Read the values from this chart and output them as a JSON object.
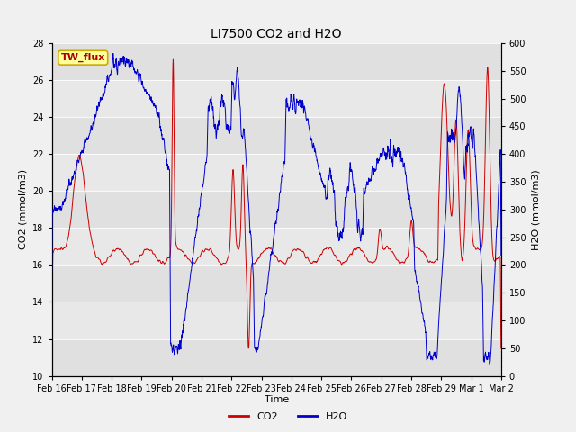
{
  "title": "LI7500 CO2 and H2O",
  "xlabel": "Time",
  "ylabel_left": "CO2 (mmol/m3)",
  "ylabel_right": "H2O (mmol/m3)",
  "ylim_left": [
    10,
    28
  ],
  "ylim_right": [
    0,
    600
  ],
  "yticks_left": [
    10,
    12,
    14,
    16,
    18,
    20,
    22,
    24,
    26,
    28
  ],
  "yticks_right": [
    0,
    50,
    100,
    150,
    200,
    250,
    300,
    350,
    400,
    450,
    500,
    550,
    600
  ],
  "fig_facecolor": "#f0f0f0",
  "plot_bg_color": "#e8e8e8",
  "grid_color": "#ffffff",
  "band_colors": [
    "#e0e0e0",
    "#e8e8e8"
  ],
  "co2_color": "#cc0000",
  "h2o_color": "#0000cc",
  "text_box_facecolor": "#ffff99",
  "text_box_edgecolor": "#ccaa00",
  "text_box_label": "TW_flux",
  "text_box_textcolor": "#aa0000",
  "xticklabels": [
    "Feb 16",
    "Feb 17",
    "Feb 18",
    "Feb 19",
    "Feb 20",
    "Feb 21",
    "Feb 22",
    "Feb 23",
    "Feb 24",
    "Feb 25",
    "Feb 26",
    "Feb 27",
    "Feb 28",
    "Feb 29",
    "Mar 1",
    "Mar 2"
  ],
  "title_fontsize": 10,
  "axis_label_fontsize": 8,
  "tick_fontsize": 7,
  "legend_fontsize": 8,
  "linewidth": 0.7
}
